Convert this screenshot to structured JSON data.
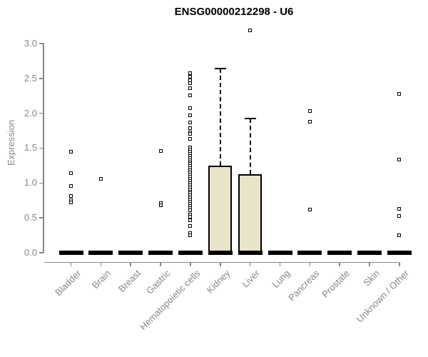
{
  "chart_data": {
    "type": "boxplot",
    "title": "ENSG00000212298 - U6",
    "ylabel": "Expression",
    "xlabel": "",
    "ylim": [
      0,
      3.25
    ],
    "yticks": [
      "0.0",
      "0.5",
      "1.0",
      "1.5",
      "2.0",
      "2.5",
      "3.0"
    ],
    "ytick_values": [
      0,
      0.5,
      1.0,
      1.5,
      2.0,
      2.5,
      3.0
    ],
    "grid": false,
    "legend": "none",
    "colors": {
      "box_fill": "#e9e4c7",
      "box_border": "#000000",
      "zero_bar": "#000000",
      "outlier": "#000000",
      "axis": "#878787",
      "title": "#000000",
      "background": "#ffffff"
    },
    "categories": [
      "Bladder",
      "Brain",
      "Breast",
      "Gastric",
      "Hematopoietic cells",
      "Kidney",
      "Liver",
      "Lung",
      "Pancreas",
      "Prostate",
      "Skin",
      "Unknown / Other"
    ],
    "boxes": [
      {
        "category": "Bladder",
        "q1": 0,
        "median": 0,
        "q3": 0,
        "whisker_low": 0,
        "whisker_high": 0,
        "outliers": [
          1.45,
          1.14,
          0.96,
          0.81,
          0.75,
          0.72
        ]
      },
      {
        "category": "Brain",
        "q1": 0,
        "median": 0,
        "q3": 0,
        "whisker_low": 0,
        "whisker_high": 0,
        "outliers": [
          1.06
        ]
      },
      {
        "category": "Breast",
        "q1": 0,
        "median": 0,
        "q3": 0,
        "whisker_low": 0,
        "whisker_high": 0,
        "outliers": []
      },
      {
        "category": "Gastric",
        "q1": 0,
        "median": 0,
        "q3": 0,
        "whisker_low": 0,
        "whisker_high": 0,
        "outliers": [
          1.46,
          0.71,
          0.68
        ]
      },
      {
        "category": "Hematopoietic cells",
        "q1": 0,
        "median": 0,
        "q3": 0,
        "whisker_low": 0,
        "whisker_high": 0,
        "outliers": [
          2.57,
          2.52,
          2.47,
          2.43,
          2.36,
          2.26,
          2.07,
          1.97,
          1.87,
          1.79,
          1.73,
          1.7,
          1.63,
          1.51,
          1.48,
          1.45,
          1.42,
          1.39,
          1.36,
          1.33,
          1.3,
          1.27,
          1.24,
          1.21,
          1.18,
          1.15,
          1.12,
          1.09,
          1.06,
          1.03,
          1.0,
          0.97,
          0.94,
          0.91,
          0.88,
          0.85,
          0.82,
          0.79,
          0.76,
          0.73,
          0.7,
          0.67,
          0.64,
          0.61,
          0.55,
          0.52,
          0.47,
          0.38,
          0.28,
          0.25
        ]
      },
      {
        "category": "Kidney",
        "q1": 0,
        "median": 0,
        "q3": 1.25,
        "whisker_low": 0,
        "whisker_high": 2.64,
        "outliers": []
      },
      {
        "category": "Liver",
        "q1": 0,
        "median": 0,
        "q3": 1.13,
        "whisker_low": 0,
        "whisker_high": 1.92,
        "outliers": [
          3.19
        ]
      },
      {
        "category": "Lung",
        "q1": 0,
        "median": 0,
        "q3": 0,
        "whisker_low": 0,
        "whisker_high": 0,
        "outliers": []
      },
      {
        "category": "Pancreas",
        "q1": 0,
        "median": 0,
        "q3": 0,
        "whisker_low": 0,
        "whisker_high": 0,
        "outliers": [
          2.03,
          1.88,
          0.62
        ]
      },
      {
        "category": "Prostate",
        "q1": 0,
        "median": 0,
        "q3": 0,
        "whisker_low": 0,
        "whisker_high": 0,
        "outliers": []
      },
      {
        "category": "Skin",
        "q1": 0,
        "median": 0,
        "q3": 0,
        "whisker_low": 0,
        "whisker_high": 0,
        "outliers": []
      },
      {
        "category": "Unknown / Other",
        "q1": 0,
        "median": 0,
        "q3": 0,
        "whisker_low": 0,
        "whisker_high": 0,
        "outliers": [
          2.28,
          1.34,
          0.63,
          0.53,
          0.25
        ]
      }
    ]
  }
}
